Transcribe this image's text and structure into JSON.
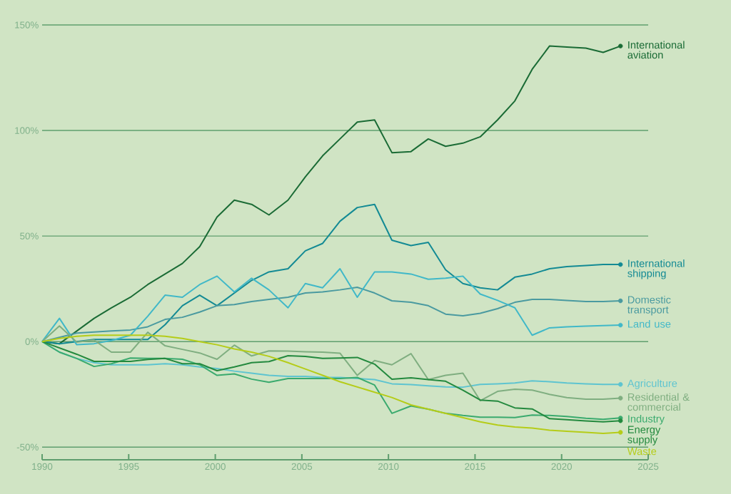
{
  "chart_data": {
    "type": "line",
    "x": [
      1990,
      1991,
      1992,
      1993,
      1994,
      1995.1,
      1996.1,
      1997.1,
      1998.1,
      1999.1,
      2000.1,
      2001.1,
      2002.1,
      2003.1,
      2004.2,
      2005.2,
      2006.2,
      2007.2,
      2008.2,
      2009.2,
      2010.2,
      2011.3,
      2012.3,
      2013.3,
      2014.3,
      2015.3,
      2016.3,
      2017.3,
      2018.3,
      2019.3,
      2020.3,
      2021.4,
      2022.4,
      2023.4
    ],
    "series": [
      {
        "name": "International aviation",
        "color": "#1a6b35",
        "values": [
          0,
          -1,
          5,
          11,
          16,
          21,
          27,
          32,
          37,
          45,
          59,
          67,
          65,
          60,
          67,
          78,
          88,
          96,
          104,
          105,
          89.5,
          90,
          96,
          92.5,
          94,
          97,
          105,
          114,
          129,
          140,
          139.5,
          139,
          137,
          140
        ]
      },
      {
        "name": "International shipping",
        "color": "#138a94",
        "values": [
          0,
          -1,
          0,
          1,
          1,
          1,
          1,
          8,
          17,
          22,
          17,
          23,
          29,
          33,
          34.5,
          43,
          46.5,
          57,
          63.5,
          65,
          48,
          45.5,
          47,
          34,
          27.5,
          25.5,
          24.5,
          30.5,
          32,
          34.5,
          35.5,
          36,
          36.5,
          36.5
        ]
      },
      {
        "name": "Domestic transport",
        "color": "#4a9aa0",
        "values": [
          0,
          2,
          4,
          4.5,
          5,
          5.5,
          7,
          10.5,
          11.5,
          14,
          17,
          17.5,
          19,
          20,
          21,
          23,
          23.5,
          24.5,
          25.7,
          23,
          19.3,
          18.6,
          17,
          13,
          12.2,
          13.4,
          15.6,
          18.6,
          20,
          20,
          19.5,
          19,
          19,
          19.3
        ]
      },
      {
        "name": "Land use",
        "color": "#40b8c8",
        "values": [
          0,
          11,
          -1.5,
          -1,
          0.5,
          3,
          12,
          22,
          21,
          27,
          31,
          23.5,
          30,
          24.5,
          16,
          27.5,
          25.5,
          34.5,
          21,
          33,
          33,
          32,
          29.5,
          30,
          31,
          22.5,
          19.5,
          16,
          3,
          6.5,
          7,
          7.3,
          7.6,
          7.8
        ]
      },
      {
        "name": "Agriculture",
        "color": "#5ec4d0",
        "values": [
          0,
          -5,
          -8,
          -10,
          -11,
          -11,
          -11,
          -10.5,
          -11,
          -12,
          -12.8,
          -14,
          -15,
          -16,
          -16.5,
          -16.5,
          -17,
          -17,
          -17.5,
          -18,
          -20,
          -20.4,
          -21,
          -21.5,
          -21.6,
          -20.3,
          -20,
          -19.6,
          -18.6,
          -19,
          -19.6,
          -20,
          -20.3,
          -20.3
        ]
      },
      {
        "name": "Residential & commercial",
        "color": "#7fae80",
        "values": [
          0,
          7.4,
          -0.3,
          0.7,
          -5,
          -5,
          4.4,
          -2,
          -3.7,
          -5.4,
          -8.4,
          -1.7,
          -6.8,
          -4.4,
          -4.5,
          -4.8,
          -5,
          -5.5,
          -16,
          -9,
          -11,
          -5.7,
          -18,
          -16,
          -15,
          -28,
          -23.6,
          -22.6,
          -23,
          -25,
          -26.5,
          -27.3,
          -27.3,
          -26.8
        ]
      },
      {
        "name": "Industry",
        "color": "#3aaa6e",
        "values": [
          0,
          -5,
          -8,
          -11.8,
          -10.5,
          -7.8,
          -8,
          -8,
          -8.4,
          -11,
          -16,
          -15.3,
          -17.8,
          -19.3,
          -17.5,
          -17.5,
          -17.5,
          -17.5,
          -17,
          -20.6,
          -34,
          -30.5,
          -32,
          -34,
          -35,
          -35.8,
          -35.8,
          -36,
          -34.8,
          -35,
          -35.5,
          -36.3,
          -36.8,
          -36.2
        ]
      },
      {
        "name": "Energy supply",
        "color": "#23893e",
        "values": [
          0,
          -3,
          -6,
          -9.4,
          -9.4,
          -9.4,
          -8.5,
          -8,
          -10.5,
          -10.5,
          -13.8,
          -12,
          -10,
          -9.5,
          -6.7,
          -7,
          -8,
          -7.8,
          -7.5,
          -10.7,
          -17.8,
          -17.2,
          -18,
          -18.8,
          -23,
          -27.7,
          -28.2,
          -31.4,
          -31.9,
          -36.5,
          -37,
          -37.6,
          -38,
          -37.5
        ]
      },
      {
        "name": "Waste",
        "color": "#b5cc18",
        "values": [
          0,
          1.5,
          2.5,
          3,
          3,
          3,
          3,
          2.5,
          1.5,
          0,
          -1.5,
          -3.5,
          -5,
          -7,
          -10,
          -13,
          -16,
          -19,
          -21.5,
          -24,
          -26.5,
          -30,
          -32,
          -34,
          -36,
          -38,
          -39.5,
          -40.5,
          -41,
          -42,
          -42.5,
          -43,
          -43.5,
          -43
        ]
      }
    ],
    "xlim": [
      1990,
      2025
    ],
    "ylim": [
      -56,
      150
    ],
    "xticks": [
      1990,
      1995,
      2000,
      2005,
      2010,
      2015,
      2020,
      2025
    ],
    "yticks": [
      {
        "value": -50,
        "label": "-50%"
      },
      {
        "value": 0,
        "label": "0%"
      },
      {
        "value": 50,
        "label": "50%"
      },
      {
        "value": 100,
        "label": "100%"
      },
      {
        "value": 150,
        "label": "150%"
      }
    ],
    "grid": "y"
  }
}
